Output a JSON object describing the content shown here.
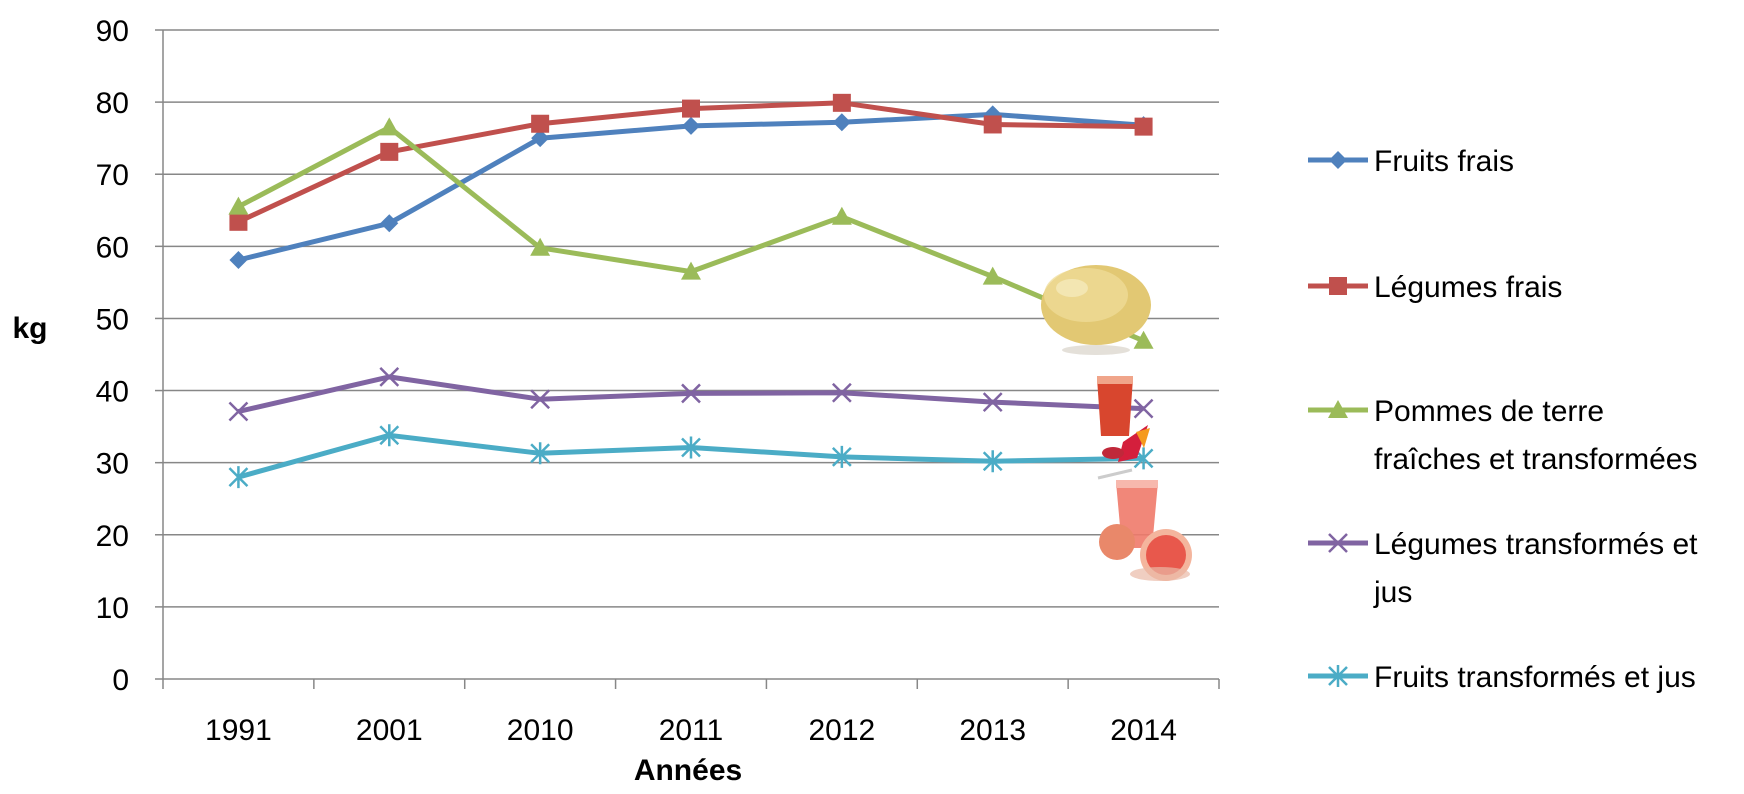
{
  "chart_data": {
    "type": "line",
    "xlabel": "Années",
    "ylabel": "kg",
    "ylim": [
      0,
      90
    ],
    "ytick_step": 10,
    "grid": true,
    "legend_position": "right",
    "categories": [
      "1991",
      "2001",
      "2010",
      "2011",
      "2012",
      "2013",
      "2014"
    ],
    "series": [
      {
        "name": "Fruits frais",
        "name_lines": [
          "Fruits frais"
        ],
        "color": "#4F81BD",
        "marker": "diamond",
        "values": [
          58.1,
          63.2,
          75.0,
          76.7,
          77.2,
          78.3,
          76.8
        ]
      },
      {
        "name": "Légumes frais",
        "name_lines": [
          "Légumes frais"
        ],
        "color": "#C0504D",
        "marker": "square",
        "values": [
          63.4,
          73.1,
          77.0,
          79.1,
          79.9,
          76.9,
          76.6
        ]
      },
      {
        "name": "Pommes de terre fraîches et transformées",
        "name_lines": [
          "Pommes de terre",
          "fraîches et transformées"
        ],
        "color": "#9BBB59",
        "marker": "triangle",
        "values": [
          65.5,
          76.5,
          59.8,
          56.5,
          64.1,
          55.8,
          46.9
        ]
      },
      {
        "name": "Légumes transformés et jus",
        "name_lines": [
          "Légumes transformés et",
          "jus"
        ],
        "color": "#8064A2",
        "marker": "x",
        "values": [
          37.1,
          41.9,
          38.8,
          39.6,
          39.7,
          38.4,
          37.5
        ]
      },
      {
        "name": "Fruits transformés et jus",
        "name_lines": [
          "Fruits transformés et jus"
        ],
        "color": "#4BACC6",
        "marker": "star",
        "values": [
          28.0,
          33.8,
          31.3,
          32.1,
          30.8,
          30.2,
          30.6
        ]
      }
    ]
  },
  "decorations": [
    {
      "name": "potato-image"
    },
    {
      "name": "vegetable-juice-image"
    },
    {
      "name": "grapefruit-juice-image"
    }
  ]
}
